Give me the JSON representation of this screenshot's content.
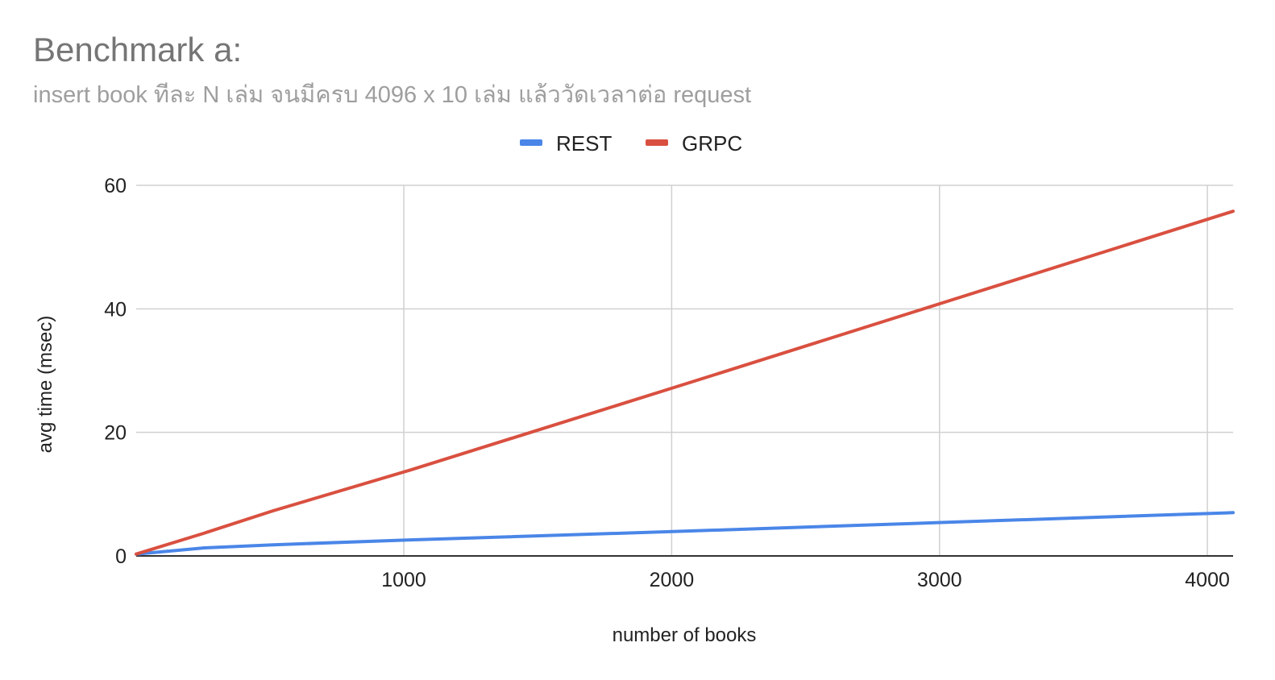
{
  "chart_data": {
    "type": "line",
    "title": "Benchmark a:",
    "subtitle": "insert book ทีละ N เล่ม จนมีครบ 4096 x 10 เล่ม แล้ววัดเวลาต่อ request",
    "xlabel": "number of books",
    "ylabel": "avg time (msec)",
    "xlim": [
      1,
      4096
    ],
    "ylim": [
      0,
      60
    ],
    "x_ticks": [
      1000,
      2000,
      3000,
      4000
    ],
    "y_ticks": [
      0,
      20,
      40,
      60
    ],
    "grid": true,
    "legend_position": "top-center",
    "x": [
      1,
      256,
      512,
      1024,
      2048,
      3072,
      4096
    ],
    "series": [
      {
        "name": "REST",
        "color": "#4a86e8",
        "values": [
          0.3,
          1.3,
          1.8,
          2.6,
          4.0,
          5.5,
          7.0
        ]
      },
      {
        "name": "GRPC",
        "color": "#d95040",
        "values": [
          0.3,
          3.7,
          7.3,
          13.9,
          27.8,
          41.8,
          55.8
        ]
      }
    ],
    "colors": {
      "axis": "#333333",
      "grid": "#d0d0d0",
      "title": "#757575",
      "subtitle": "#9e9e9e",
      "text": "#222222"
    }
  }
}
